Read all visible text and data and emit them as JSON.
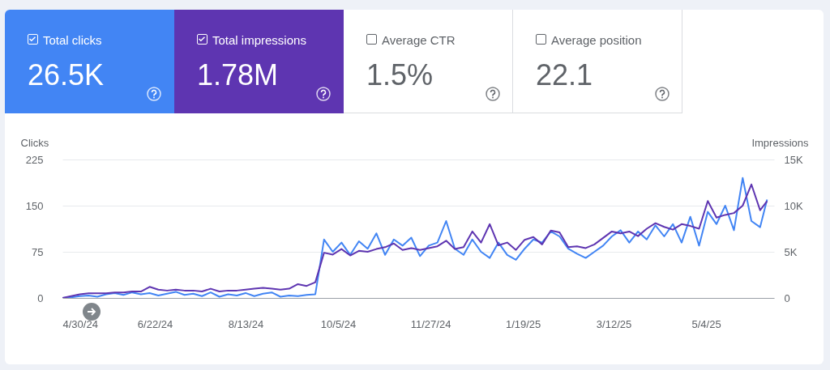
{
  "chart_data": {
    "type": "line",
    "xlabel": null,
    "ylabel": "Clicks",
    "y2label": "Impressions",
    "legend": "top",
    "grid": "y",
    "annotations": [
      "26.5K",
      "1.78M",
      "Average CTR",
      "1.5%",
      "Average position",
      "22.1"
    ],
    "x": [
      "2024-04-30",
      "2024-05-05",
      "2024-05-10",
      "2024-05-15",
      "2024-05-20",
      "2024-05-25",
      "2024-05-30",
      "2024-06-04",
      "2024-06-09",
      "2024-06-14",
      "2024-06-19",
      "2024-06-24",
      "2024-06-29",
      "2024-07-04",
      "2024-07-09",
      "2024-07-14",
      "2024-07-19",
      "2024-07-24",
      "2024-07-29",
      "2024-08-03",
      "2024-08-08",
      "2024-08-13",
      "2024-08-18",
      "2024-08-23",
      "2024-08-28",
      "2024-09-02",
      "2024-09-07",
      "2024-09-12",
      "2024-09-17",
      "2024-09-22",
      "2024-09-27",
      "2024-10-02",
      "2024-10-07",
      "2024-10-12",
      "2024-10-17",
      "2024-10-22",
      "2024-10-27",
      "2024-11-01",
      "2024-11-06",
      "2024-11-11",
      "2024-11-16",
      "2024-11-21",
      "2024-11-26",
      "2024-12-01",
      "2024-12-06",
      "2024-12-11",
      "2024-12-16",
      "2024-12-21",
      "2024-12-26",
      "2024-12-31",
      "2025-01-05",
      "2025-01-10",
      "2025-01-15",
      "2025-01-20",
      "2025-01-25",
      "2025-01-30",
      "2025-02-04",
      "2025-02-09",
      "2025-02-14",
      "2025-02-19",
      "2025-02-24",
      "2025-03-01",
      "2025-03-06",
      "2025-03-11",
      "2025-03-16",
      "2025-03-21",
      "2025-03-26",
      "2025-03-31",
      "2025-04-05",
      "2025-04-10",
      "2025-04-15",
      "2025-04-20",
      "2025-04-25",
      "2025-04-30",
      "2025-05-05",
      "2025-05-10",
      "2025-05-15",
      "2025-05-20",
      "2025-05-25",
      "2025-05-30",
      "2025-06-04",
      "2025-06-08"
    ],
    "series": [
      {
        "name": "Total clicks",
        "color": "#4285f4",
        "values": [
          0,
          1,
          3,
          4,
          2,
          6,
          8,
          5,
          9,
          6,
          8,
          4,
          7,
          10,
          5,
          7,
          3,
          9,
          2,
          6,
          4,
          8,
          3,
          7,
          9,
          2,
          4,
          3,
          5,
          6,
          95,
          75,
          90,
          70,
          92,
          80,
          105,
          70,
          95,
          85,
          98,
          68,
          85,
          90,
          125,
          80,
          70,
          95,
          75,
          65,
          90,
          70,
          62,
          80,
          95,
          90,
          108,
          100,
          80,
          72,
          65,
          75,
          85,
          100,
          110,
          90,
          108,
          95,
          118,
          100,
          120,
          90,
          132,
          85,
          140,
          120,
          150,
          110,
          195,
          125,
          115,
          160
        ]
      },
      {
        "name": "Total impressions",
        "color": "#5e35b1",
        "axis": "y2",
        "values": [
          0,
          200,
          400,
          500,
          500,
          500,
          600,
          600,
          700,
          700,
          1200,
          900,
          800,
          900,
          800,
          800,
          700,
          1000,
          700,
          800,
          800,
          900,
          1000,
          1100,
          1000,
          900,
          1000,
          1500,
          1300,
          1700,
          4900,
          4700,
          5300,
          4600,
          5100,
          5000,
          5300,
          5500,
          5900,
          5200,
          5400,
          5200,
          5400,
          5600,
          6200,
          5300,
          5500,
          7200,
          6000,
          8000,
          5700,
          6000,
          5200,
          6300,
          6600,
          5800,
          7300,
          7100,
          5500,
          5600,
          5400,
          5800,
          6500,
          7200,
          7000,
          7200,
          6700,
          7500,
          8100,
          7700,
          7400,
          8000,
          7800,
          7500,
          10500,
          8700,
          9000,
          9200,
          10000,
          12300,
          9500,
          10500
        ]
      }
    ],
    "xlim": [
      "2024-04-30",
      "2025-06-12"
    ],
    "xticks": [
      {
        "value": "2024-04-30",
        "label": "4/30/24"
      },
      {
        "value": "2024-06-22",
        "label": "6/22/24"
      },
      {
        "value": "2024-08-13",
        "label": "8/13/24"
      },
      {
        "value": "2024-10-05",
        "label": "10/5/24"
      },
      {
        "value": "2024-11-27",
        "label": "11/27/24"
      },
      {
        "value": "2025-01-19",
        "label": "1/19/25"
      },
      {
        "value": "2025-03-12",
        "label": "3/12/25"
      },
      {
        "value": "2025-05-04",
        "label": "5/4/25"
      }
    ],
    "ylim": [
      0,
      225
    ],
    "yticks": [
      0,
      75,
      150,
      225
    ],
    "y2lim": [
      0,
      15000
    ],
    "y2ticks": [
      0,
      {
        "value": 5000,
        "label": "5K"
      },
      {
        "value": 10000,
        "label": "10K"
      },
      {
        "value": 15000,
        "label": "15K"
      }
    ]
  }
}
